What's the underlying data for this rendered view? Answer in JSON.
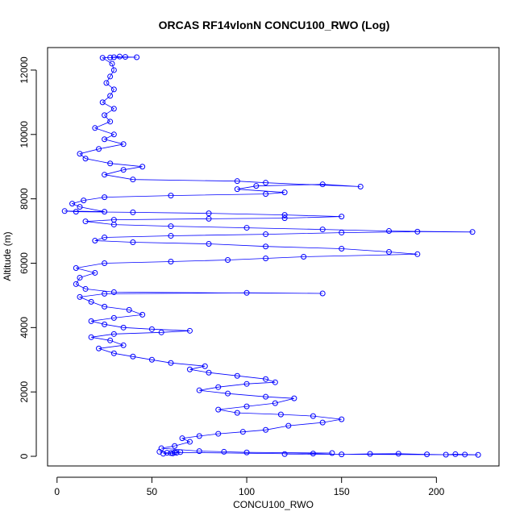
{
  "chart_data": {
    "type": "line",
    "title": "ORCAS RF14vlonN CONCU100_RWO (Log)",
    "xlabel": "CONCU100_RWO",
    "ylabel": "Altitude (m)",
    "xlim": [
      -5,
      233
    ],
    "ylim": [
      -300,
      12700
    ],
    "x_ticks": [
      0,
      50,
      100,
      150,
      200
    ],
    "y_ticks": [
      0,
      2000,
      4000,
      6000,
      8000,
      10000,
      12000
    ],
    "grid": false,
    "legend": "none",
    "series": [
      {
        "color": "#0000ff",
        "marker": "open-circle",
        "points": [
          [
            54,
            140
          ],
          [
            58,
            110
          ],
          [
            61,
            90
          ],
          [
            63,
            110
          ],
          [
            65,
            130
          ],
          [
            56,
            80
          ],
          [
            60,
            100
          ],
          [
            62,
            120
          ],
          [
            150,
            60
          ],
          [
            165,
            75
          ],
          [
            180,
            80
          ],
          [
            195,
            60
          ],
          [
            205,
            50
          ],
          [
            210,
            65
          ],
          [
            215,
            55
          ],
          [
            222,
            45
          ],
          [
            120,
            70
          ],
          [
            135,
            85
          ],
          [
            145,
            100
          ],
          [
            100,
            120
          ],
          [
            88,
            140
          ],
          [
            75,
            160
          ],
          [
            55,
            250
          ],
          [
            62,
            320
          ],
          [
            70,
            450
          ],
          [
            66,
            560
          ],
          [
            75,
            630
          ],
          [
            85,
            700
          ],
          [
            98,
            760
          ],
          [
            110,
            820
          ],
          [
            122,
            950
          ],
          [
            140,
            1050
          ],
          [
            150,
            1150
          ],
          [
            135,
            1250
          ],
          [
            118,
            1300
          ],
          [
            95,
            1350
          ],
          [
            85,
            1450
          ],
          [
            100,
            1550
          ],
          [
            115,
            1650
          ],
          [
            125,
            1800
          ],
          [
            110,
            1850
          ],
          [
            90,
            1950
          ],
          [
            75,
            2050
          ],
          [
            85,
            2150
          ],
          [
            100,
            2250
          ],
          [
            115,
            2300
          ],
          [
            110,
            2400
          ],
          [
            95,
            2500
          ],
          [
            80,
            2600
          ],
          [
            70,
            2700
          ],
          [
            78,
            2800
          ],
          [
            60,
            2900
          ],
          [
            50,
            3000
          ],
          [
            40,
            3100
          ],
          [
            30,
            3200
          ],
          [
            22,
            3350
          ],
          [
            35,
            3450
          ],
          [
            28,
            3600
          ],
          [
            18,
            3700
          ],
          [
            30,
            3800
          ],
          [
            55,
            3850
          ],
          [
            70,
            3900
          ],
          [
            50,
            3950
          ],
          [
            35,
            4000
          ],
          [
            25,
            4100
          ],
          [
            18,
            4200
          ],
          [
            30,
            4300
          ],
          [
            45,
            4400
          ],
          [
            38,
            4550
          ],
          [
            25,
            4650
          ],
          [
            18,
            4800
          ],
          [
            12,
            4950
          ],
          [
            25,
            5050
          ],
          [
            100,
            5080
          ],
          [
            140,
            5060
          ],
          [
            30,
            5100
          ],
          [
            15,
            5200
          ],
          [
            10,
            5350
          ],
          [
            12,
            5550
          ],
          [
            20,
            5700
          ],
          [
            10,
            5850
          ],
          [
            25,
            6000
          ],
          [
            60,
            6050
          ],
          [
            90,
            6100
          ],
          [
            110,
            6150
          ],
          [
            130,
            6200
          ],
          [
            190,
            6280
          ],
          [
            175,
            6350
          ],
          [
            150,
            6450
          ],
          [
            110,
            6520
          ],
          [
            80,
            6600
          ],
          [
            40,
            6650
          ],
          [
            20,
            6700
          ],
          [
            25,
            6800
          ],
          [
            60,
            6850
          ],
          [
            110,
            6900
          ],
          [
            150,
            6950
          ],
          [
            190,
            6980
          ],
          [
            219,
            6970
          ],
          [
            175,
            7000
          ],
          [
            140,
            7050
          ],
          [
            100,
            7100
          ],
          [
            60,
            7150
          ],
          [
            30,
            7200
          ],
          [
            15,
            7300
          ],
          [
            30,
            7350
          ],
          [
            80,
            7380
          ],
          [
            120,
            7400
          ],
          [
            150,
            7450
          ],
          [
            120,
            7500
          ],
          [
            80,
            7550
          ],
          [
            40,
            7580
          ],
          [
            10,
            7600
          ],
          [
            4,
            7620
          ],
          [
            25,
            7600
          ],
          [
            12,
            7750
          ],
          [
            8,
            7850
          ],
          [
            14,
            7950
          ],
          [
            25,
            8050
          ],
          [
            60,
            8100
          ],
          [
            110,
            8150
          ],
          [
            120,
            8200
          ],
          [
            95,
            8300
          ],
          [
            105,
            8400
          ],
          [
            140,
            8450
          ],
          [
            160,
            8380
          ],
          [
            110,
            8500
          ],
          [
            95,
            8550
          ],
          [
            40,
            8600
          ],
          [
            25,
            8750
          ],
          [
            35,
            8900
          ],
          [
            45,
            9000
          ],
          [
            28,
            9100
          ],
          [
            15,
            9250
          ],
          [
            12,
            9400
          ],
          [
            22,
            9550
          ],
          [
            35,
            9700
          ],
          [
            25,
            9850
          ],
          [
            30,
            10000
          ],
          [
            20,
            10200
          ],
          [
            28,
            10400
          ],
          [
            25,
            10600
          ],
          [
            30,
            10800
          ],
          [
            24,
            11000
          ],
          [
            28,
            11200
          ],
          [
            30,
            11400
          ],
          [
            26,
            11600
          ],
          [
            28,
            11800
          ],
          [
            30,
            12000
          ],
          [
            29,
            12200
          ],
          [
            24,
            12380
          ],
          [
            30,
            12400
          ],
          [
            36,
            12410
          ],
          [
            42,
            12400
          ],
          [
            28,
            12390
          ],
          [
            33,
            12420
          ]
        ]
      }
    ]
  }
}
